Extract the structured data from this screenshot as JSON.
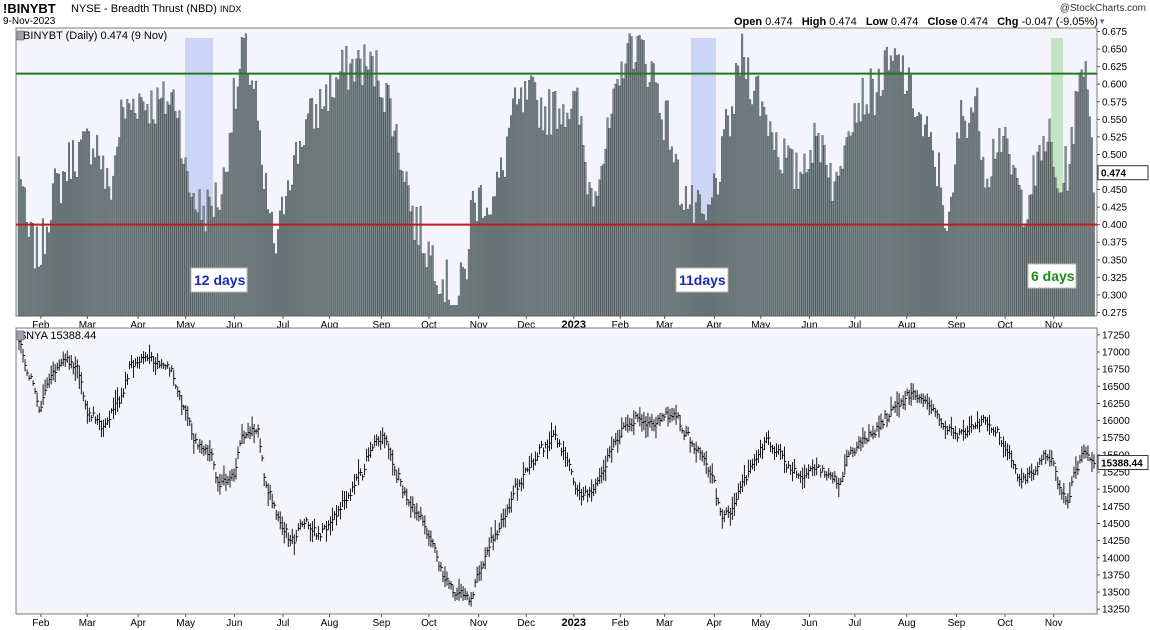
{
  "header": {
    "symbol": "!BINYBT",
    "description": "NYSE - Breadth Thrust (NBD)",
    "exchange": "INDX",
    "date": "9-Nov-2023",
    "brand": "@StockCharts.com",
    "quote": {
      "open_label": "Open",
      "open": "0.474",
      "high_label": "High",
      "high": "0.474",
      "low_label": "Low",
      "low": "0.474",
      "close_label": "Close",
      "close": "0.474",
      "chg_label": "Chg",
      "chg": "-0.047 (-9.05%)"
    }
  },
  "colors": {
    "panel_bg": "#f3f5fb",
    "bar_fill": "#7f8c8d",
    "bar_stroke": "#3b4446",
    "green_line": "#1e7a1e",
    "red_line": "#c41a1a",
    "blue_shade": "#b9c3f5",
    "green_shade": "#a9dca1",
    "blue_text": "#1a2bb3",
    "green_text": "#1a8a1a"
  },
  "chart_data": [
    {
      "type": "bar",
      "title": "!BINYBT (Daily) 0.474 (9 Nov)",
      "ylim": [
        0.27,
        0.68
      ],
      "yticks": [
        "0.275",
        "0.300",
        "0.325",
        "0.350",
        "0.375",
        "0.400",
        "0.425",
        "0.450",
        "0.475",
        "0.500",
        "0.525",
        "0.550",
        "0.575",
        "0.600",
        "0.625",
        "0.650",
        "0.675"
      ],
      "last_value_label": "0.474",
      "reference_lines": [
        {
          "value": 0.615,
          "color": "green"
        },
        {
          "value": 0.4,
          "color": "red"
        }
      ],
      "x_labels": [
        "Feb",
        "Mar",
        "Apr",
        "May",
        "Jun",
        "Jul",
        "Aug",
        "Sep",
        "Oct",
        "Nov",
        "Dec",
        "2023",
        "Feb",
        "Mar",
        "Apr",
        "May",
        "Jun",
        "Jul",
        "Aug",
        "Sep",
        "Oct",
        "Nov"
      ],
      "grid": false,
      "anchors": [
        [
          0,
          0.49
        ],
        [
          5,
          0.38
        ],
        [
          10,
          0.36
        ],
        [
          18,
          0.45
        ],
        [
          28,
          0.5
        ],
        [
          38,
          0.52
        ],
        [
          45,
          0.45
        ],
        [
          52,
          0.56
        ],
        [
          60,
          0.58
        ],
        [
          68,
          0.57
        ],
        [
          78,
          0.58
        ],
        [
          85,
          0.45
        ],
        [
          92,
          0.42
        ],
        [
          100,
          0.44
        ],
        [
          108,
          0.58
        ],
        [
          112,
          0.65
        ],
        [
          117,
          0.6
        ],
        [
          122,
          0.45
        ],
        [
          128,
          0.37
        ],
        [
          135,
          0.48
        ],
        [
          145,
          0.55
        ],
        [
          155,
          0.59
        ],
        [
          162,
          0.62
        ],
        [
          170,
          0.63
        ],
        [
          178,
          0.62
        ],
        [
          184,
          0.58
        ],
        [
          190,
          0.5
        ],
        [
          198,
          0.4
        ],
        [
          205,
          0.36
        ],
        [
          212,
          0.32
        ],
        [
          217,
          0.28
        ],
        [
          222,
          0.33
        ],
        [
          226,
          0.43
        ],
        [
          231,
          0.44
        ],
        [
          236,
          0.43
        ],
        [
          240,
          0.47
        ],
        [
          246,
          0.56
        ],
        [
          255,
          0.58
        ],
        [
          263,
          0.56
        ],
        [
          270,
          0.57
        ],
        [
          277,
          0.57
        ],
        [
          285,
          0.45
        ],
        [
          291,
          0.5
        ],
        [
          297,
          0.57
        ],
        [
          303,
          0.66
        ],
        [
          309,
          0.65
        ],
        [
          315,
          0.62
        ],
        [
          322,
          0.55
        ],
        [
          330,
          0.45
        ],
        [
          336,
          0.42
        ],
        [
          342,
          0.4
        ],
        [
          348,
          0.47
        ],
        [
          354,
          0.55
        ],
        [
          360,
          0.64
        ],
        [
          366,
          0.6
        ],
        [
          373,
          0.55
        ],
        [
          380,
          0.5
        ],
        [
          387,
          0.47
        ],
        [
          394,
          0.51
        ],
        [
          400,
          0.52
        ],
        [
          407,
          0.45
        ],
        [
          413,
          0.56
        ],
        [
          420,
          0.58
        ],
        [
          426,
          0.59
        ],
        [
          432,
          0.62
        ],
        [
          438,
          0.63
        ],
        [
          445,
          0.58
        ],
        [
          451,
          0.53
        ],
        [
          457,
          0.48
        ],
        [
          463,
          0.4
        ],
        [
          469,
          0.55
        ],
        [
          476,
          0.57
        ],
        [
          482,
          0.48
        ],
        [
          488,
          0.53
        ],
        [
          494,
          0.48
        ],
        [
          500,
          0.43
        ],
        [
          506,
          0.47
        ],
        [
          512,
          0.53
        ],
        [
          517,
          0.45
        ],
        [
          522,
          0.48
        ],
        [
          526,
          0.56
        ],
        [
          530,
          0.64
        ],
        [
          533,
          0.58
        ],
        [
          535,
          0.47
        ]
      ],
      "highlights": [
        {
          "label": "12 days",
          "color": "blue"
        },
        {
          "label": "11days",
          "color": "blue"
        },
        {
          "label": "6 days",
          "color": "green"
        }
      ]
    },
    {
      "type": "line",
      "style": "ohlc",
      "title": "$NYA 15388.44",
      "ylim": [
        13180,
        17350
      ],
      "yticks": [
        "13250",
        "13500",
        "13750",
        "14000",
        "14250",
        "14500",
        "14750",
        "15000",
        "15250",
        "15500",
        "15750",
        "16000",
        "16250",
        "16500",
        "16750",
        "17000",
        "17250"
      ],
      "last_value_label": "15388.44",
      "x_labels": [
        "Feb",
        "Mar",
        "Apr",
        "May",
        "Jun",
        "Jul",
        "Aug",
        "Sep",
        "Oct",
        "Nov",
        "Dec",
        "2023",
        "Feb",
        "Mar",
        "Apr",
        "May",
        "Jun",
        "Jul",
        "Aug",
        "Sep",
        "Oct",
        "Nov"
      ],
      "grid": false,
      "anchors": [
        [
          0,
          17100
        ],
        [
          6,
          16600
        ],
        [
          10,
          16200
        ],
        [
          16,
          16650
        ],
        [
          22,
          16900
        ],
        [
          28,
          16800
        ],
        [
          35,
          16100
        ],
        [
          42,
          15900
        ],
        [
          50,
          16300
        ],
        [
          56,
          16800
        ],
        [
          62,
          16950
        ],
        [
          68,
          16850
        ],
        [
          75,
          16750
        ],
        [
          82,
          16200
        ],
        [
          88,
          15700
        ],
        [
          95,
          15500
        ],
        [
          100,
          15050
        ],
        [
          106,
          15200
        ],
        [
          112,
          15800
        ],
        [
          118,
          15900
        ],
        [
          124,
          14950
        ],
        [
          130,
          14500
        ],
        [
          136,
          14250
        ],
        [
          142,
          14500
        ],
        [
          150,
          14350
        ],
        [
          158,
          14650
        ],
        [
          164,
          14900
        ],
        [
          170,
          15200
        ],
        [
          176,
          15650
        ],
        [
          182,
          15750
        ],
        [
          188,
          15200
        ],
        [
          194,
          14800
        ],
        [
          200,
          14600
        ],
        [
          206,
          14150
        ],
        [
          212,
          13700
        ],
        [
          218,
          13500
        ],
        [
          224,
          13400
        ],
        [
          230,
          13850
        ],
        [
          236,
          14300
        ],
        [
          242,
          14650
        ],
        [
          248,
          15050
        ],
        [
          254,
          15350
        ],
        [
          260,
          15600
        ],
        [
          266,
          15750
        ],
        [
          272,
          15500
        ],
        [
          278,
          14950
        ],
        [
          284,
          14950
        ],
        [
          290,
          15250
        ],
        [
          296,
          15650
        ],
        [
          302,
          15900
        ],
        [
          308,
          16050
        ],
        [
          314,
          15950
        ],
        [
          320,
          16050
        ],
        [
          326,
          16100
        ],
        [
          332,
          15800
        ],
        [
          338,
          15550
        ],
        [
          344,
          15250
        ],
        [
          350,
          14600
        ],
        [
          355,
          14700
        ],
        [
          360,
          15100
        ],
        [
          366,
          15400
        ],
        [
          372,
          15700
        ],
        [
          378,
          15550
        ],
        [
          384,
          15300
        ],
        [
          390,
          15200
        ],
        [
          396,
          15350
        ],
        [
          402,
          15250
        ],
        [
          408,
          15100
        ],
        [
          414,
          15550
        ],
        [
          420,
          15700
        ],
        [
          426,
          15850
        ],
        [
          432,
          16050
        ],
        [
          438,
          16250
        ],
        [
          444,
          16400
        ],
        [
          450,
          16350
        ],
        [
          456,
          16100
        ],
        [
          462,
          15900
        ],
        [
          468,
          15800
        ],
        [
          474,
          15900
        ],
        [
          480,
          16000
        ],
        [
          486,
          15850
        ],
        [
          492,
          15500
        ],
        [
          498,
          15150
        ],
        [
          504,
          15200
        ],
        [
          510,
          15500
        ],
        [
          514,
          15450
        ],
        [
          518,
          15000
        ],
        [
          522,
          14850
        ],
        [
          526,
          15250
        ],
        [
          530,
          15500
        ],
        [
          535,
          15390
        ]
      ],
      "highlights": []
    }
  ]
}
